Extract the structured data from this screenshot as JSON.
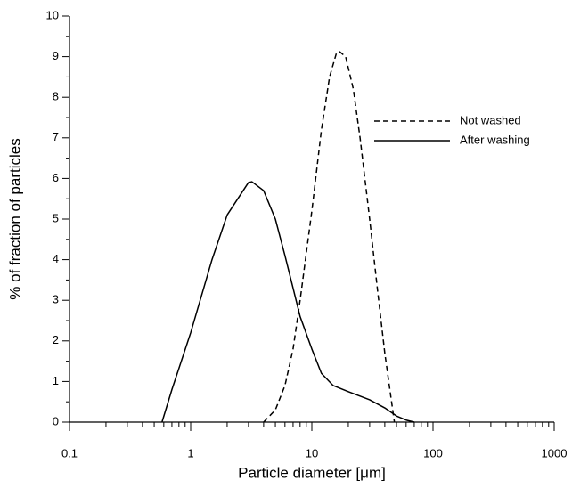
{
  "chart_data": {
    "type": "line",
    "xlabel": "Particle diameter [μm]",
    "ylabel": "% of fraction of particles",
    "xscale": "log",
    "xlim": [
      0.1,
      1000
    ],
    "xticks": [
      0.1,
      1,
      10,
      100,
      1000
    ],
    "ylim": [
      0,
      10
    ],
    "yticks": [
      0,
      1,
      2,
      3,
      4,
      5,
      6,
      7,
      8,
      9,
      10
    ],
    "legend": "upper right",
    "series": [
      {
        "name": "Not washed",
        "color": "#000000",
        "style": "dashed",
        "x": [
          4,
          5,
          6,
          7,
          8,
          10,
          12,
          14,
          16,
          17,
          19,
          22,
          25,
          30,
          35,
          40,
          45,
          48
        ],
        "values": [
          0,
          0.3,
          0.9,
          1.8,
          3.0,
          5.2,
          7.2,
          8.5,
          9.1,
          9.12,
          9.0,
          8.2,
          7.0,
          5.0,
          3.2,
          1.7,
          0.6,
          0
        ]
      },
      {
        "name": "After washing",
        "color": "#000000",
        "style": "solid",
        "x": [
          0.58,
          0.7,
          1,
          1.5,
          2,
          3,
          3.2,
          4,
          5,
          6,
          7,
          8,
          10,
          12,
          15,
          20,
          30,
          40,
          50,
          60,
          70
        ],
        "values": [
          0,
          0.8,
          2.2,
          4.0,
          5.1,
          5.9,
          5.92,
          5.7,
          5.0,
          4.1,
          3.3,
          2.6,
          1.8,
          1.2,
          0.9,
          0.75,
          0.55,
          0.35,
          0.15,
          0.05,
          0
        ]
      }
    ]
  }
}
